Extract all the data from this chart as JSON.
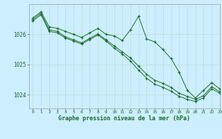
{
  "title": "Graphe pression niveau de la mer (hPa)",
  "background_color": "#cceeff",
  "grid_color": "#b8ddd0",
  "line_color": "#1a6b2a",
  "marker_color": "#1a6b2a",
  "xlim": [
    -0.5,
    23
  ],
  "ylim": [
    1023.55,
    1027.0
  ],
  "yticks": [
    1024,
    1025,
    1026
  ],
  "xticks": [
    0,
    1,
    2,
    3,
    4,
    5,
    6,
    7,
    8,
    9,
    10,
    11,
    12,
    13,
    14,
    15,
    16,
    17,
    18,
    19,
    20,
    21,
    22,
    23
  ],
  "series1": [
    1026.55,
    1026.75,
    1026.25,
    1026.2,
    1026.1,
    1026.0,
    1025.9,
    1026.05,
    1026.2,
    1026.0,
    1025.95,
    1025.8,
    1026.15,
    1026.6,
    1025.85,
    1025.75,
    1025.5,
    1025.2,
    1024.75,
    1024.15,
    1023.9,
    1024.15,
    1024.4,
    1024.2
  ],
  "series2": [
    1026.5,
    1026.7,
    1026.15,
    1026.1,
    1025.92,
    1025.82,
    1025.72,
    1025.87,
    1026.02,
    1025.82,
    1025.62,
    1025.42,
    1025.22,
    1024.95,
    1024.68,
    1024.48,
    1024.38,
    1024.25,
    1024.05,
    1023.95,
    1023.85,
    1023.97,
    1024.27,
    1024.1
  ],
  "series3": [
    1026.45,
    1026.65,
    1026.1,
    1026.05,
    1025.88,
    1025.78,
    1025.68,
    1025.83,
    1025.98,
    1025.78,
    1025.55,
    1025.35,
    1025.12,
    1024.82,
    1024.55,
    1024.35,
    1024.25,
    1024.12,
    1023.95,
    1023.85,
    1023.78,
    1023.9,
    1024.2,
    1024.05
  ]
}
